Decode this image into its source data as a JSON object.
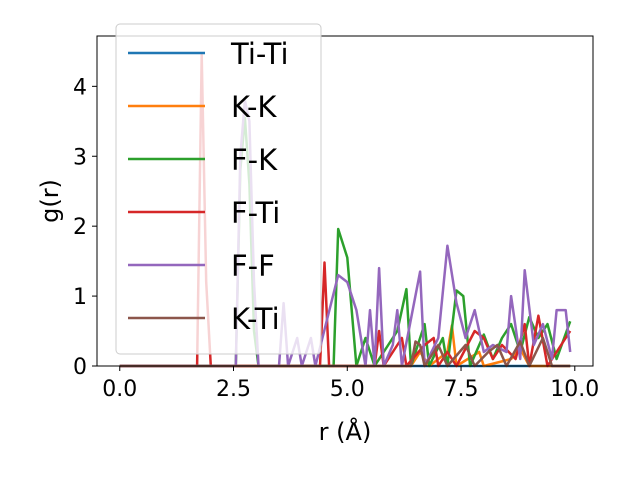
{
  "chart_data": {
    "type": "line",
    "xlabel": "r (Å)",
    "ylabel": "g(r)",
    "xlim": [
      -0.5,
      10.4
    ],
    "ylim": [
      0,
      4.72
    ],
    "xticks": [
      0.0,
      2.5,
      5.0,
      7.5,
      10.0
    ],
    "xtick_labels": [
      "0.0",
      "2.5",
      "5.0",
      "7.5",
      "10.0"
    ],
    "yticks": [
      0,
      1,
      2,
      3,
      4
    ],
    "ytick_labels": [
      "0",
      "1",
      "2",
      "3",
      "4"
    ],
    "grid": false,
    "legend_position": "upper-left",
    "series": [
      {
        "name": "Ti-Ti",
        "color": "#1f77b4",
        "points": [
          [
            0,
            0
          ],
          [
            9.9,
            0
          ]
        ]
      },
      {
        "name": "K-K",
        "color": "#ff7f0e",
        "points": [
          [
            0,
            0
          ],
          [
            6.4,
            0
          ],
          [
            6.6,
            0.2
          ],
          [
            6.8,
            0
          ],
          [
            7.2,
            0.2
          ],
          [
            7.3,
            0.58
          ],
          [
            7.4,
            0
          ],
          [
            7.9,
            0.2
          ],
          [
            8.0,
            0
          ],
          [
            8.6,
            0.1
          ],
          [
            8.8,
            0.25
          ],
          [
            9.0,
            0
          ],
          [
            9.9,
            0
          ]
        ]
      },
      {
        "name": "F-K",
        "color": "#2ca02c",
        "points": [
          [
            0,
            0
          ],
          [
            2.55,
            0
          ],
          [
            2.65,
            2.8
          ],
          [
            2.75,
            3.55
          ],
          [
            2.85,
            2.6
          ],
          [
            2.95,
            0.5
          ],
          [
            3.05,
            0
          ],
          [
            4.7,
            0
          ],
          [
            4.8,
            1.96
          ],
          [
            5.0,
            1.55
          ],
          [
            5.2,
            0
          ],
          [
            5.4,
            0.4
          ],
          [
            5.6,
            0
          ],
          [
            6.1,
            0.5
          ],
          [
            6.3,
            1.1
          ],
          [
            6.4,
            0
          ],
          [
            6.7,
            0.6
          ],
          [
            6.8,
            0
          ],
          [
            7.1,
            0.4
          ],
          [
            7.2,
            0
          ],
          [
            7.4,
            1.08
          ],
          [
            7.55,
            1.0
          ],
          [
            7.7,
            0
          ],
          [
            8.0,
            0.45
          ],
          [
            8.2,
            0.1
          ],
          [
            8.4,
            0.4
          ],
          [
            8.6,
            0.6
          ],
          [
            8.8,
            0.2
          ],
          [
            9.0,
            0.7
          ],
          [
            9.2,
            0.4
          ],
          [
            9.4,
            0.6
          ],
          [
            9.6,
            0.1
          ],
          [
            9.9,
            0.64
          ]
        ]
      },
      {
        "name": "F-Ti",
        "color": "#d62728",
        "points": [
          [
            0,
            0
          ],
          [
            1.7,
            0
          ],
          [
            1.8,
            4.45
          ],
          [
            1.9,
            1.2
          ],
          [
            2.0,
            0
          ],
          [
            4.4,
            0
          ],
          [
            4.5,
            1.48
          ],
          [
            4.6,
            0
          ],
          [
            5.6,
            0
          ],
          [
            5.7,
            0.5
          ],
          [
            5.8,
            0
          ],
          [
            6.2,
            0.4
          ],
          [
            6.3,
            0
          ],
          [
            6.7,
            0.3
          ],
          [
            6.9,
            0.4
          ],
          [
            7.0,
            0
          ],
          [
            7.2,
            0.2
          ],
          [
            7.4,
            0
          ],
          [
            7.8,
            0.5
          ],
          [
            8.0,
            0.4
          ],
          [
            8.2,
            0.1
          ],
          [
            8.4,
            0.3
          ],
          [
            8.7,
            0.1
          ],
          [
            8.9,
            0.6
          ],
          [
            9.0,
            0
          ],
          [
            9.2,
            0.72
          ],
          [
            9.4,
            0
          ],
          [
            9.9,
            0.5
          ]
        ]
      },
      {
        "name": "F-F",
        "color": "#9467bd",
        "points": [
          [
            0,
            0
          ],
          [
            2.55,
            0
          ],
          [
            2.65,
            3.0
          ],
          [
            2.75,
            3.8
          ],
          [
            2.85,
            3.5
          ],
          [
            2.95,
            1.2
          ],
          [
            3.05,
            0
          ],
          [
            3.5,
            0
          ],
          [
            3.6,
            0.9
          ],
          [
            3.7,
            0
          ],
          [
            3.9,
            0.4
          ],
          [
            4.0,
            0
          ],
          [
            4.2,
            0.4
          ],
          [
            4.3,
            0
          ],
          [
            4.8,
            1.3
          ],
          [
            5.0,
            1.2
          ],
          [
            5.2,
            0.8
          ],
          [
            5.4,
            0
          ],
          [
            5.5,
            0.8
          ],
          [
            5.6,
            0
          ],
          [
            5.7,
            1.4
          ],
          [
            5.8,
            0
          ],
          [
            6.0,
            0.3
          ],
          [
            6.1,
            0.8
          ],
          [
            6.2,
            0
          ],
          [
            6.6,
            1.35
          ],
          [
            6.7,
            0
          ],
          [
            7.0,
            0.4
          ],
          [
            7.2,
            1.72
          ],
          [
            7.4,
            0.9
          ],
          [
            7.6,
            0.4
          ],
          [
            7.8,
            0.8
          ],
          [
            8.0,
            0.2
          ],
          [
            8.2,
            0.3
          ],
          [
            8.5,
            0.2
          ],
          [
            8.6,
            1.0
          ],
          [
            8.8,
            0.1
          ],
          [
            8.9,
            1.37
          ],
          [
            9.1,
            0.3
          ],
          [
            9.3,
            0.6
          ],
          [
            9.5,
            0.1
          ],
          [
            9.6,
            0.8
          ],
          [
            9.8,
            0.8
          ],
          [
            9.9,
            0.2
          ]
        ]
      },
      {
        "name": "K-Ti",
        "color": "#8c564b",
        "points": [
          [
            0,
            0
          ],
          [
            6.4,
            0
          ],
          [
            6.5,
            0.35
          ],
          [
            6.6,
            0.3
          ],
          [
            6.7,
            0
          ],
          [
            7.0,
            0.3
          ],
          [
            7.2,
            0
          ],
          [
            7.6,
            0.3
          ],
          [
            7.8,
            0
          ],
          [
            8.1,
            0.2
          ],
          [
            8.3,
            0.3
          ],
          [
            8.5,
            0
          ],
          [
            8.8,
            0.35
          ],
          [
            9.0,
            0
          ],
          [
            9.3,
            0.4
          ],
          [
            9.5,
            0
          ],
          [
            9.9,
            0
          ]
        ]
      }
    ]
  }
}
